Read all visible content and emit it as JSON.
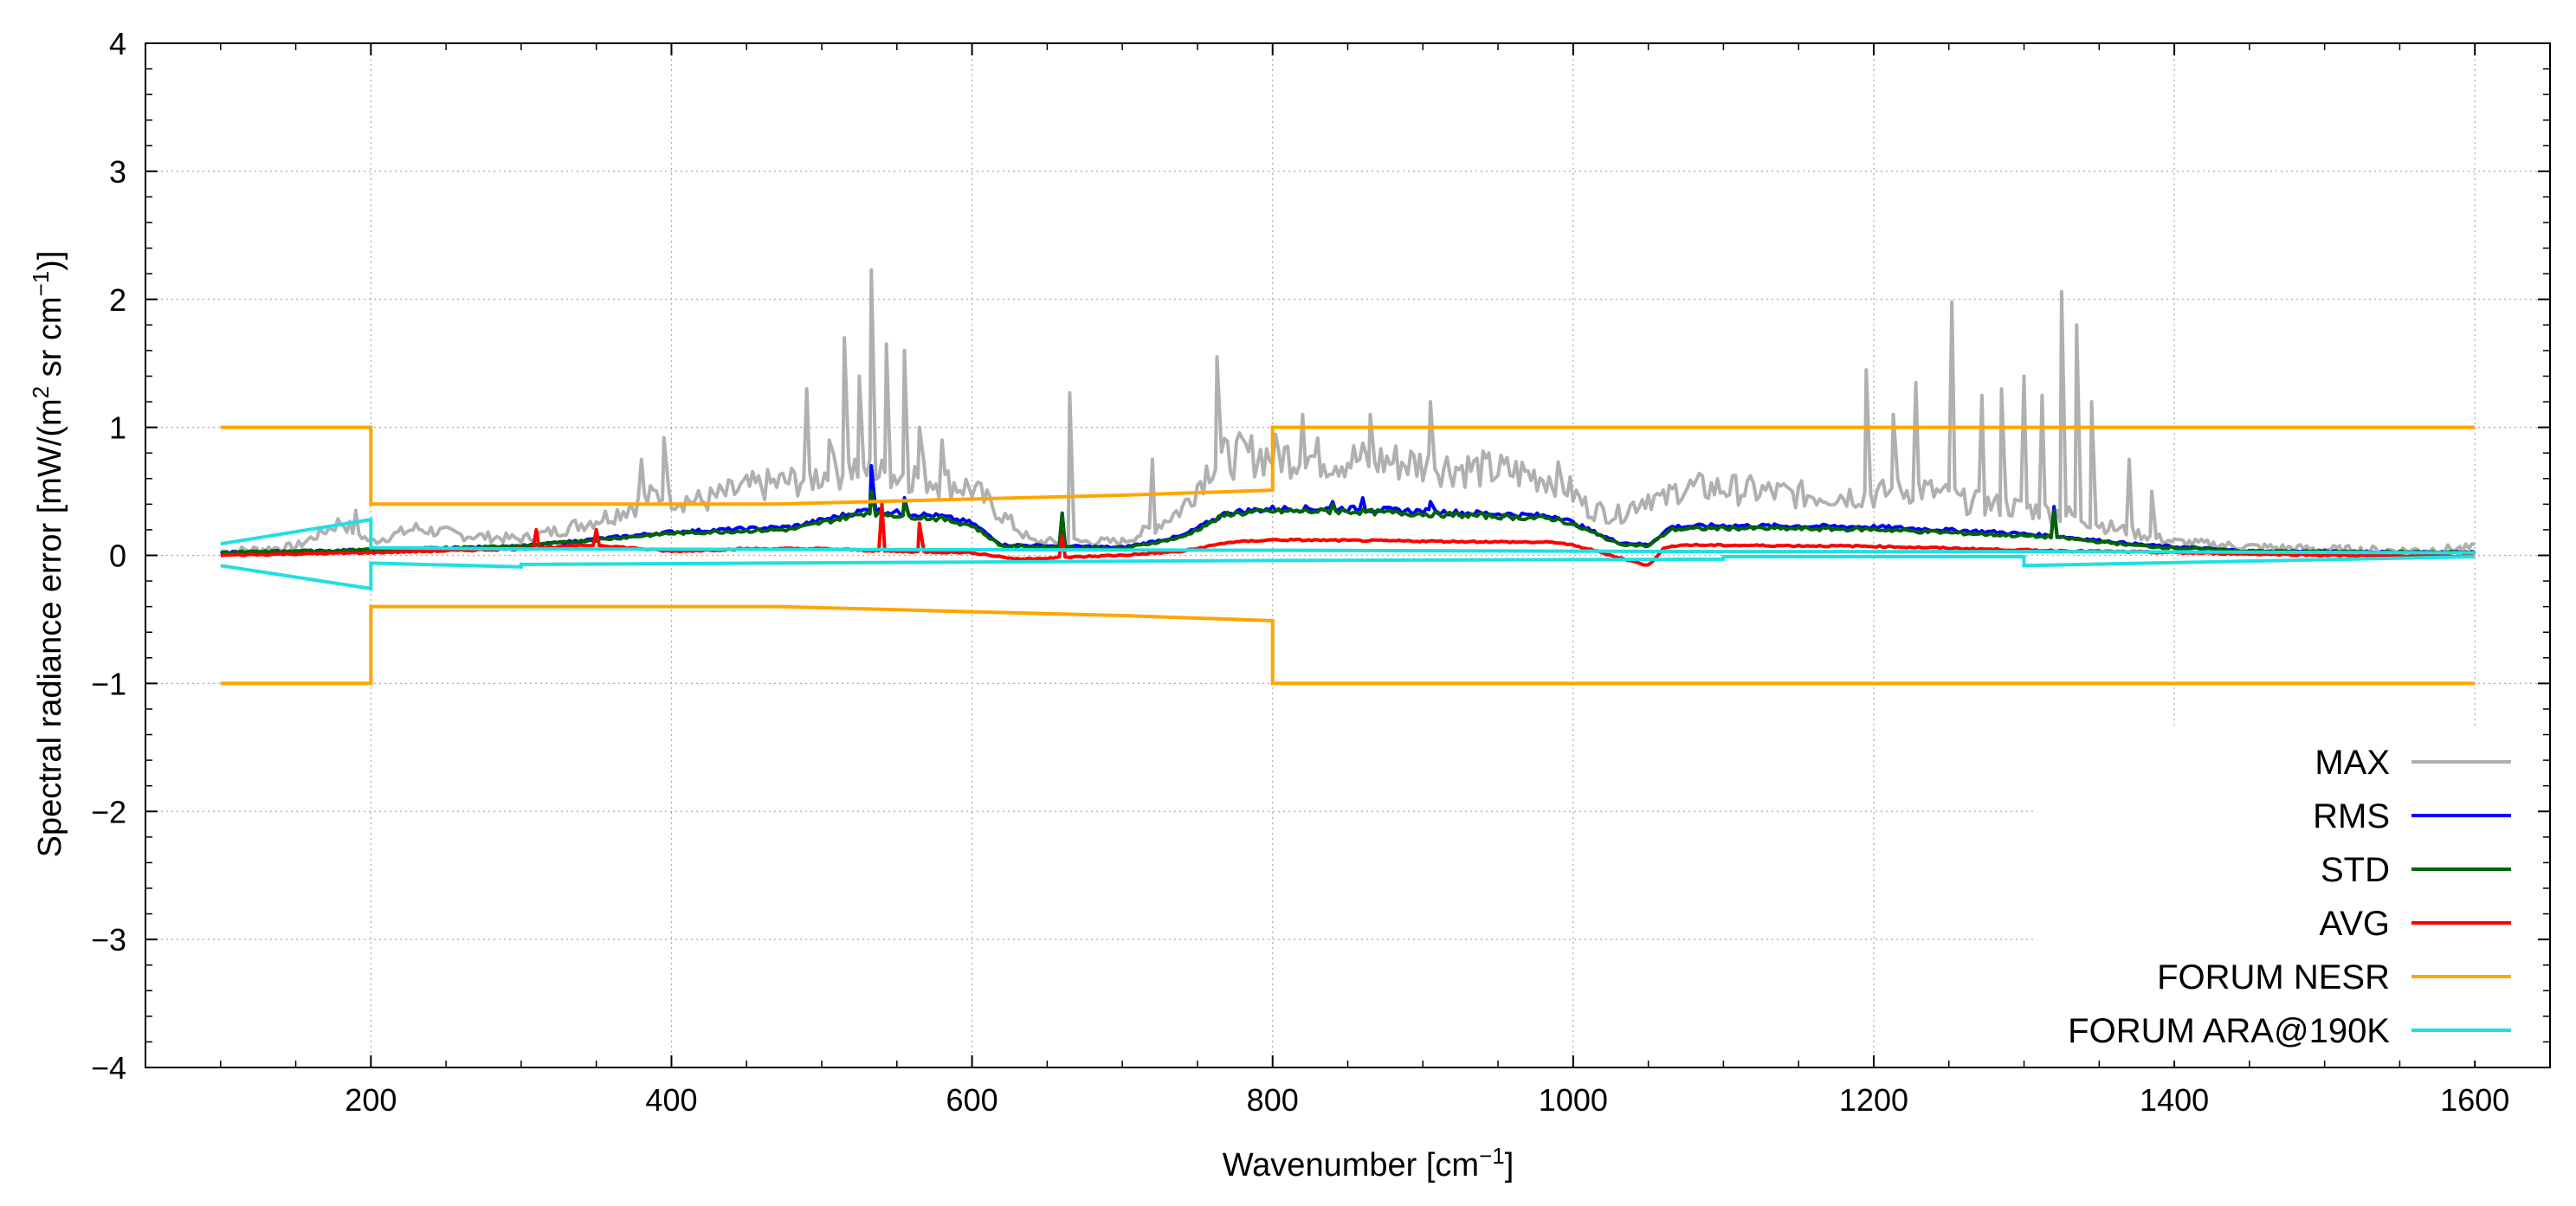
{
  "chart_data": {
    "type": "line",
    "xlabel": "Wavenumber [cm",
    "xlabel_sup": "−1",
    "xlabel_end": "]",
    "ylabel": "Spectral radiance error [mW/(m",
    "ylabel_sup1": "2",
    "ylabel_mid": " sr cm",
    "ylabel_sup2": "−1",
    "ylabel_end": ")]",
    "xlim": [
      50,
      1650
    ],
    "ylim": [
      -4,
      4
    ],
    "grid": true,
    "legend_position": "bottom-right",
    "xticks": [
      200,
      400,
      600,
      800,
      1000,
      1200,
      1400,
      1600
    ],
    "xtick_labels": [
      "200",
      "400",
      "600",
      "800",
      "1000",
      "1200",
      "1400",
      "1600"
    ],
    "yticks": [
      4,
      3,
      2,
      1,
      0,
      -1,
      -2,
      -3,
      -4
    ],
    "ytick_labels": [
      "4",
      "3",
      "2",
      "1",
      "0",
      "−1",
      "−2",
      "−3",
      "−4"
    ],
    "series": [
      {
        "name": "MAX",
        "color": "#b0b0b0",
        "points": [
          [
            100,
            0.02
          ],
          [
            150,
            0.06
          ],
          [
            180,
            0.25
          ],
          [
            200,
            0.1
          ],
          [
            230,
            0.2
          ],
          [
            260,
            0.15
          ],
          [
            300,
            0.12
          ],
          [
            330,
            0.2
          ],
          [
            360,
            0.3
          ],
          [
            390,
            0.45
          ],
          [
            420,
            0.4
          ],
          [
            450,
            0.5
          ],
          [
            480,
            0.55
          ],
          [
            500,
            0.6
          ],
          [
            520,
            0.65
          ],
          [
            540,
            0.6
          ],
          [
            560,
            0.6
          ],
          [
            580,
            0.55
          ],
          [
            600,
            0.5
          ],
          [
            620,
            0.3
          ],
          [
            640,
            0.1
          ],
          [
            680,
            0.1
          ],
          [
            700,
            0.1
          ],
          [
            720,
            0.2
          ],
          [
            740,
            0.35
          ],
          [
            760,
            0.7
          ],
          [
            780,
            0.75
          ],
          [
            800,
            0.75
          ],
          [
            840,
            0.72
          ],
          [
            880,
            0.7
          ],
          [
            920,
            0.66
          ],
          [
            960,
            0.62
          ],
          [
            990,
            0.57
          ],
          [
            1010,
            0.35
          ],
          [
            1030,
            0.3
          ],
          [
            1050,
            0.45
          ],
          [
            1060,
            0.4
          ],
          [
            1070,
            0.5
          ],
          [
            1100,
            0.5
          ],
          [
            1150,
            0.45
          ],
          [
            1200,
            0.45
          ],
          [
            1230,
            0.5
          ],
          [
            1260,
            0.4
          ],
          [
            1300,
            0.35
          ],
          [
            1330,
            0.3
          ],
          [
            1360,
            0.2
          ],
          [
            1400,
            0.1
          ],
          [
            1450,
            0.06
          ],
          [
            1500,
            0.04
          ],
          [
            1550,
            0.03
          ],
          [
            1600,
            0.05
          ]
        ],
        "spikes": [
          [
            190,
            0.35
          ],
          [
            380,
            0.75
          ],
          [
            395,
            0.92
          ],
          [
            490,
            1.3
          ],
          [
            505,
            0.9
          ],
          [
            515,
            1.7
          ],
          [
            525,
            1.4
          ],
          [
            533,
            2.23
          ],
          [
            543,
            1.65
          ],
          [
            555,
            1.6
          ],
          [
            565,
            1.0
          ],
          [
            580,
            0.9
          ],
          [
            665,
            1.27
          ],
          [
            720,
            0.75
          ],
          [
            763,
            1.55
          ],
          [
            820,
            1.1
          ],
          [
            865,
            1.1
          ],
          [
            905,
            1.2
          ],
          [
            1195,
            1.45
          ],
          [
            1213,
            1.1
          ],
          [
            1228,
            1.35
          ],
          [
            1252,
            1.98
          ],
          [
            1272,
            1.25
          ],
          [
            1285,
            1.3
          ],
          [
            1300,
            1.4
          ],
          [
            1312,
            1.25
          ],
          [
            1325,
            2.06
          ],
          [
            1335,
            1.8
          ],
          [
            1345,
            1.2
          ],
          [
            1370,
            0.75
          ],
          [
            1385,
            0.5
          ]
        ]
      },
      {
        "name": "RMS",
        "color": "#0000ff",
        "points": [
          [
            100,
            0.02
          ],
          [
            200,
            0.04
          ],
          [
            300,
            0.07
          ],
          [
            400,
            0.18
          ],
          [
            480,
            0.22
          ],
          [
            530,
            0.35
          ],
          [
            580,
            0.3
          ],
          [
            600,
            0.25
          ],
          [
            620,
            0.08
          ],
          [
            700,
            0.06
          ],
          [
            740,
            0.15
          ],
          [
            770,
            0.33
          ],
          [
            800,
            0.36
          ],
          [
            850,
            0.36
          ],
          [
            900,
            0.34
          ],
          [
            950,
            0.32
          ],
          [
            990,
            0.3
          ],
          [
            1010,
            0.2
          ],
          [
            1030,
            0.1
          ],
          [
            1050,
            0.08
          ],
          [
            1065,
            0.22
          ],
          [
            1100,
            0.23
          ],
          [
            1200,
            0.22
          ],
          [
            1280,
            0.18
          ],
          [
            1320,
            0.15
          ],
          [
            1380,
            0.08
          ],
          [
            1450,
            0.03
          ],
          [
            1600,
            0.02
          ]
        ],
        "spikes": [
          [
            533,
            0.7
          ],
          [
            555,
            0.45
          ],
          [
            660,
            0.33
          ],
          [
            840,
            0.42
          ],
          [
            860,
            0.45
          ],
          [
            905,
            0.42
          ],
          [
            1320,
            0.38
          ]
        ]
      },
      {
        "name": "STD",
        "color": "#006400",
        "points": [
          [
            100,
            0.02
          ],
          [
            200,
            0.04
          ],
          [
            300,
            0.07
          ],
          [
            400,
            0.17
          ],
          [
            480,
            0.2
          ],
          [
            530,
            0.33
          ],
          [
            580,
            0.28
          ],
          [
            600,
            0.23
          ],
          [
            620,
            0.07
          ],
          [
            700,
            0.05
          ],
          [
            740,
            0.14
          ],
          [
            770,
            0.32
          ],
          [
            800,
            0.34
          ],
          [
            850,
            0.34
          ],
          [
            900,
            0.32
          ],
          [
            950,
            0.3
          ],
          [
            990,
            0.28
          ],
          [
            1010,
            0.19
          ],
          [
            1030,
            0.09
          ],
          [
            1050,
            0.07
          ],
          [
            1065,
            0.2
          ],
          [
            1100,
            0.21
          ],
          [
            1200,
            0.2
          ],
          [
            1280,
            0.16
          ],
          [
            1320,
            0.14
          ],
          [
            1380,
            0.07
          ],
          [
            1450,
            0.03
          ],
          [
            1600,
            0.02
          ]
        ],
        "spikes": [
          [
            533,
            0.5
          ],
          [
            555,
            0.42
          ],
          [
            660,
            0.33
          ],
          [
            840,
            0.4
          ],
          [
            1320,
            0.35
          ]
        ]
      },
      {
        "name": "AVG",
        "color": "#ff0000",
        "points": [
          [
            100,
            0.0
          ],
          [
            200,
            0.02
          ],
          [
            300,
            0.05
          ],
          [
            350,
            0.08
          ],
          [
            400,
            0.03
          ],
          [
            450,
            0.05
          ],
          [
            500,
            0.05
          ],
          [
            550,
            0.03
          ],
          [
            600,
            0.02
          ],
          [
            630,
            -0.03
          ],
          [
            700,
            0.0
          ],
          [
            740,
            0.03
          ],
          [
            770,
            0.1
          ],
          [
            800,
            0.12
          ],
          [
            900,
            0.11
          ],
          [
            990,
            0.1
          ],
          [
            1010,
            0.05
          ],
          [
            1040,
            -0.05
          ],
          [
            1050,
            -0.08
          ],
          [
            1060,
            0.05
          ],
          [
            1070,
            0.08
          ],
          [
            1200,
            0.07
          ],
          [
            1300,
            0.04
          ],
          [
            1400,
            0.02
          ],
          [
            1500,
            0.0
          ],
          [
            1600,
            -0.01
          ]
        ],
        "spikes": [
          [
            310,
            0.2
          ],
          [
            350,
            0.2
          ],
          [
            540,
            0.4
          ],
          [
            565,
            0.25
          ],
          [
            660,
            0.15
          ]
        ]
      },
      {
        "name": "FORUM NESR",
        "color": "#ffa500",
        "upper": [
          [
            100,
            1.0
          ],
          [
            200,
            1.0
          ],
          [
            200,
            0.4
          ],
          [
            400,
            0.4
          ],
          [
            470,
            0.4
          ],
          [
            600,
            0.44
          ],
          [
            700,
            0.47
          ],
          [
            800,
            0.51
          ],
          [
            800,
            1.0
          ],
          [
            1600,
            1.0
          ]
        ],
        "lower": [
          [
            100,
            -1.0
          ],
          [
            200,
            -1.0
          ],
          [
            200,
            -0.4
          ],
          [
            400,
            -0.4
          ],
          [
            470,
            -0.4
          ],
          [
            600,
            -0.44
          ],
          [
            700,
            -0.47
          ],
          [
            800,
            -0.51
          ],
          [
            800,
            -1.0
          ],
          [
            1600,
            -1.0
          ]
        ]
      },
      {
        "name": "FORUM ARA@190K",
        "color": "#1fe0e0",
        "upper": [
          [
            100,
            0.09
          ],
          [
            200,
            0.28
          ],
          [
            200,
            0.06
          ],
          [
            300,
            0.05
          ],
          [
            800,
            0.04
          ],
          [
            1100,
            0.03
          ],
          [
            1300,
            0.03
          ],
          [
            1300,
            0.03
          ],
          [
            1600,
            0.02
          ]
        ],
        "lower": [
          [
            100,
            -0.08
          ],
          [
            200,
            -0.26
          ],
          [
            200,
            -0.06
          ],
          [
            300,
            -0.09
          ],
          [
            300,
            -0.07
          ],
          [
            800,
            -0.04
          ],
          [
            1100,
            -0.03
          ],
          [
            1100,
            -0.01
          ],
          [
            1300,
            -0.01
          ],
          [
            1300,
            -0.08
          ],
          [
            1600,
            -0.01
          ]
        ]
      }
    ]
  }
}
